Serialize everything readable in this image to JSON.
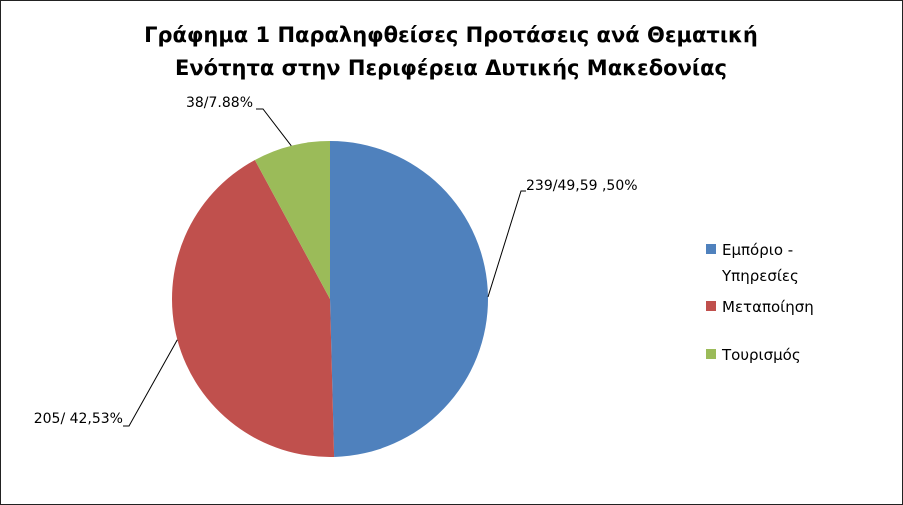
{
  "chart_data": {
    "type": "pie",
    "title": "Γράφημα 1 Παραληφθείσες Προτάσεις ανά Θεματική Ενότητα στην Περιφέρεια Δυτικής Μακεδονίας",
    "categories": [
      "Εμπόριο - Υπηρεσίες",
      "Μεταποίηση",
      "Τουρισμός"
    ],
    "values": [
      239,
      205,
      38
    ],
    "value_labels": [
      "239/49,59 ,50%",
      "205/ 42,53%",
      "38/7.88%"
    ],
    "colors": [
      "#4f81bd",
      "#c0504d",
      "#9bbb59"
    ],
    "legend": "right"
  }
}
